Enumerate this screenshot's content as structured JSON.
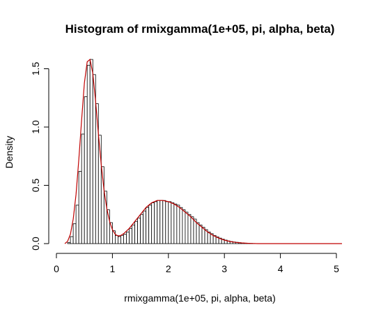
{
  "chart_data": {
    "type": "bar",
    "title": "Histogram of rmixgamma(1e+05, pi, alpha, beta)",
    "xlabel": "rmixgamma(1e+05, pi, alpha, beta)",
    "ylabel": "Density",
    "xlim": [
      0,
      5.1
    ],
    "ylim": [
      0,
      1.6
    ],
    "xticks": [
      "0",
      "1",
      "2",
      "3",
      "4",
      "5"
    ],
    "yticks": [
      "0.0",
      "0.5",
      "1.0",
      "1.5"
    ],
    "bin_width": 0.05,
    "bins": [
      {
        "x": 0.2,
        "y": 0.01
      },
      {
        "x": 0.25,
        "y": 0.06
      },
      {
        "x": 0.3,
        "y": 0.17
      },
      {
        "x": 0.35,
        "y": 0.33
      },
      {
        "x": 0.4,
        "y": 0.62
      },
      {
        "x": 0.45,
        "y": 0.94
      },
      {
        "x": 0.5,
        "y": 1.26
      },
      {
        "x": 0.55,
        "y": 1.53
      },
      {
        "x": 0.6,
        "y": 1.58
      },
      {
        "x": 0.65,
        "y": 1.45
      },
      {
        "x": 0.7,
        "y": 1.2
      },
      {
        "x": 0.75,
        "y": 0.93
      },
      {
        "x": 0.8,
        "y": 0.66
      },
      {
        "x": 0.85,
        "y": 0.45
      },
      {
        "x": 0.9,
        "y": 0.29
      },
      {
        "x": 0.95,
        "y": 0.18
      },
      {
        "x": 1.0,
        "y": 0.11
      },
      {
        "x": 1.05,
        "y": 0.07
      },
      {
        "x": 1.1,
        "y": 0.06
      },
      {
        "x": 1.15,
        "y": 0.07
      },
      {
        "x": 1.2,
        "y": 0.08
      },
      {
        "x": 1.25,
        "y": 0.1
      },
      {
        "x": 1.3,
        "y": 0.13
      },
      {
        "x": 1.35,
        "y": 0.16
      },
      {
        "x": 1.4,
        "y": 0.19
      },
      {
        "x": 1.45,
        "y": 0.22
      },
      {
        "x": 1.5,
        "y": 0.25
      },
      {
        "x": 1.55,
        "y": 0.28
      },
      {
        "x": 1.6,
        "y": 0.31
      },
      {
        "x": 1.65,
        "y": 0.33
      },
      {
        "x": 1.7,
        "y": 0.35
      },
      {
        "x": 1.75,
        "y": 0.36
      },
      {
        "x": 1.8,
        "y": 0.37
      },
      {
        "x": 1.85,
        "y": 0.37
      },
      {
        "x": 1.9,
        "y": 0.37
      },
      {
        "x": 1.95,
        "y": 0.36
      },
      {
        "x": 2.0,
        "y": 0.36
      },
      {
        "x": 2.05,
        "y": 0.35
      },
      {
        "x": 2.1,
        "y": 0.34
      },
      {
        "x": 2.15,
        "y": 0.33
      },
      {
        "x": 2.2,
        "y": 0.31
      },
      {
        "x": 2.25,
        "y": 0.29
      },
      {
        "x": 2.3,
        "y": 0.27
      },
      {
        "x": 2.35,
        "y": 0.25
      },
      {
        "x": 2.4,
        "y": 0.23
      },
      {
        "x": 2.45,
        "y": 0.21
      },
      {
        "x": 2.5,
        "y": 0.18
      },
      {
        "x": 2.55,
        "y": 0.16
      },
      {
        "x": 2.6,
        "y": 0.14
      },
      {
        "x": 2.65,
        "y": 0.12
      },
      {
        "x": 2.7,
        "y": 0.1
      },
      {
        "x": 2.75,
        "y": 0.085
      },
      {
        "x": 2.8,
        "y": 0.07
      },
      {
        "x": 2.85,
        "y": 0.058
      },
      {
        "x": 2.9,
        "y": 0.047
      },
      {
        "x": 2.95,
        "y": 0.038
      },
      {
        "x": 3.0,
        "y": 0.03
      },
      {
        "x": 3.05,
        "y": 0.023
      },
      {
        "x": 3.1,
        "y": 0.018
      },
      {
        "x": 3.15,
        "y": 0.014
      },
      {
        "x": 3.2,
        "y": 0.011
      },
      {
        "x": 3.25,
        "y": 0.008
      },
      {
        "x": 3.3,
        "y": 0.006
      },
      {
        "x": 3.35,
        "y": 0.004
      },
      {
        "x": 3.4,
        "y": 0.003
      },
      {
        "x": 3.45,
        "y": 0.002
      },
      {
        "x": 3.5,
        "y": 0.001
      }
    ],
    "density_curve": {
      "color": "#c00000",
      "x": [
        0.15,
        0.2,
        0.25,
        0.3,
        0.35,
        0.4,
        0.45,
        0.5,
        0.55,
        0.6,
        0.65,
        0.7,
        0.75,
        0.8,
        0.85,
        0.9,
        0.95,
        1.0,
        1.05,
        1.1,
        1.15,
        1.2,
        1.3,
        1.4,
        1.5,
        1.6,
        1.7,
        1.8,
        1.9,
        2.0,
        2.1,
        2.2,
        2.3,
        2.4,
        2.5,
        2.6,
        2.7,
        2.8,
        2.9,
        3.0,
        3.1,
        3.2,
        3.3,
        3.4,
        3.5,
        3.6,
        4.0,
        4.5,
        5.1
      ],
      "y": [
        0.0,
        0.02,
        0.08,
        0.21,
        0.42,
        0.72,
        1.06,
        1.38,
        1.56,
        1.58,
        1.46,
        1.22,
        0.94,
        0.68,
        0.46,
        0.3,
        0.19,
        0.12,
        0.08,
        0.065,
        0.07,
        0.085,
        0.13,
        0.19,
        0.25,
        0.31,
        0.35,
        0.37,
        0.37,
        0.36,
        0.34,
        0.31,
        0.27,
        0.23,
        0.18,
        0.14,
        0.1,
        0.07,
        0.047,
        0.03,
        0.018,
        0.011,
        0.006,
        0.003,
        0.001,
        0.0,
        0.0,
        0.0,
        0.0
      ]
    }
  }
}
